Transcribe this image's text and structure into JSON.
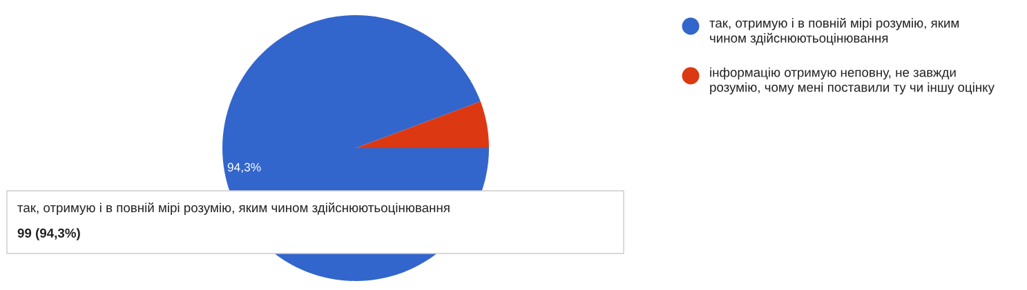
{
  "chart_data": {
    "type": "pie",
    "categories": [
      "так, отримую і в повній мірі розумію, яким чином здійснюютьоцінювання",
      "інформацію отримую неповну, не завжди розумію, чому мені поставили ту чи іншу оцінку"
    ],
    "values": [
      94.3,
      5.7
    ],
    "colors": [
      "#3366cc",
      "#dc3912"
    ],
    "value_labels": [
      "94,3%",
      null
    ],
    "legend": "right",
    "annotations": [
      "так, отримую і в повній мірі розумію, яким чином здійснюютьоцінювання",
      "99 (94,3%)"
    ]
  }
}
